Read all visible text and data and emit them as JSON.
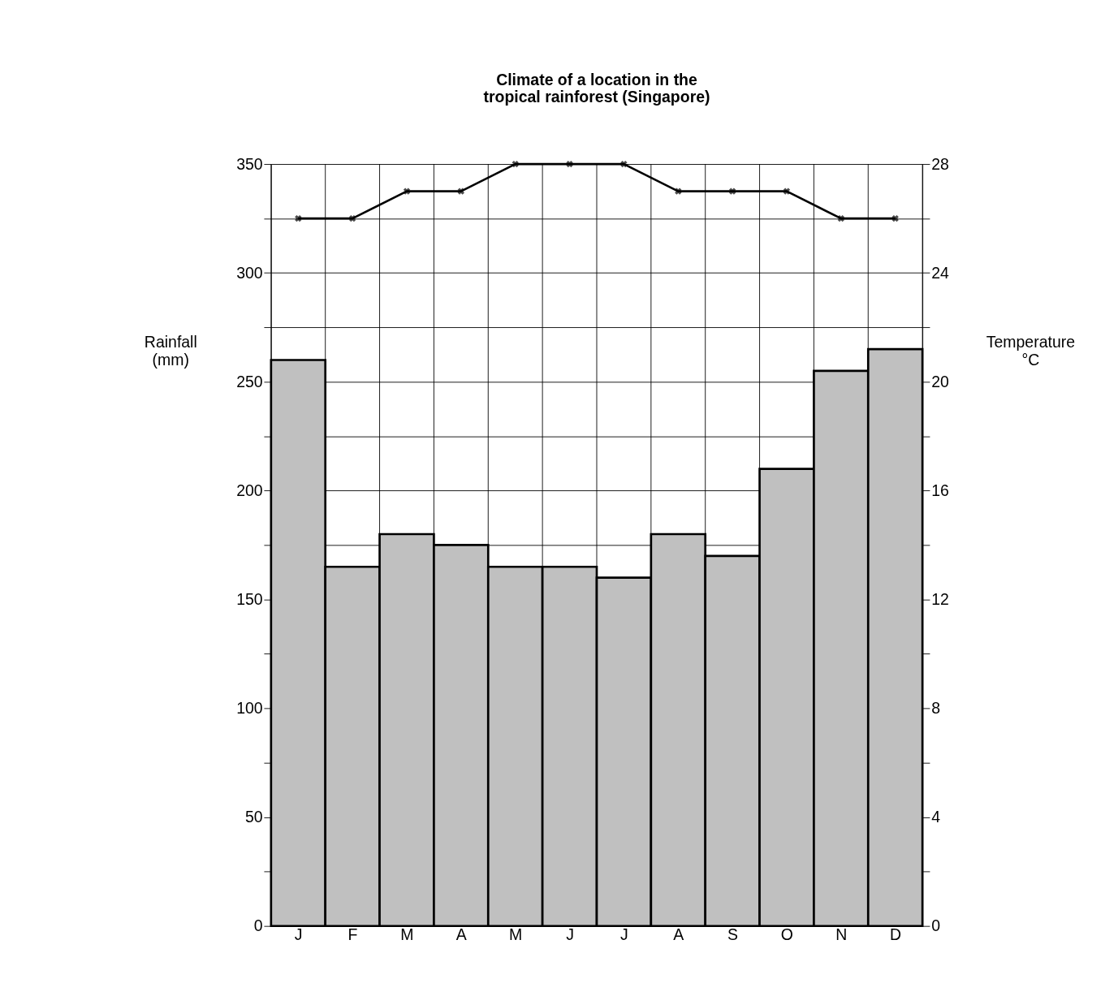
{
  "chart_data": {
    "type": "bar",
    "title": [
      "Climate of a location in the",
      "tropical rainforest (Singapore)"
    ],
    "ylabel": [
      "Rainfall",
      "(mm)"
    ],
    "y2label": [
      "Temperature",
      "°C"
    ],
    "categories": [
      "J",
      "F",
      "M",
      "A",
      "M",
      "J",
      "J",
      "A",
      "S",
      "O",
      "N",
      "D"
    ],
    "series": [
      {
        "color": "#c0c0c0",
        "values": [
          260,
          165,
          180,
          175,
          165,
          165,
          160,
          180,
          170,
          210,
          255,
          265
        ]
      },
      {
        "type": "line",
        "axis": "y2",
        "color": "#000000",
        "marker": "cross",
        "values": [
          26,
          26,
          27,
          27,
          28,
          28,
          28,
          27,
          27,
          27,
          26,
          26
        ]
      }
    ],
    "ylim": [
      0,
      350
    ],
    "yticks": [
      0,
      {
        "value": 25,
        "label": null
      },
      50,
      {
        "value": 75,
        "label": null
      },
      100,
      {
        "value": 125,
        "label": null
      },
      150,
      {
        "value": 175,
        "label": null
      },
      200,
      {
        "value": 225,
        "label": null
      },
      250,
      {
        "value": 275,
        "label": null
      },
      300,
      {
        "value": 325,
        "label": null
      },
      350
    ],
    "y2lim": [
      0,
      28
    ],
    "y2ticks": [
      0,
      {
        "value": 2,
        "label": null
      },
      4,
      {
        "value": 6,
        "label": null
      },
      8,
      {
        "value": 10,
        "label": null
      },
      12,
      {
        "value": 14,
        "label": null
      },
      16,
      {
        "value": 18,
        "label": null
      },
      20,
      {
        "value": 22,
        "label": null
      },
      24,
      {
        "value": 26,
        "label": null
      },
      28
    ],
    "grid": true
  }
}
